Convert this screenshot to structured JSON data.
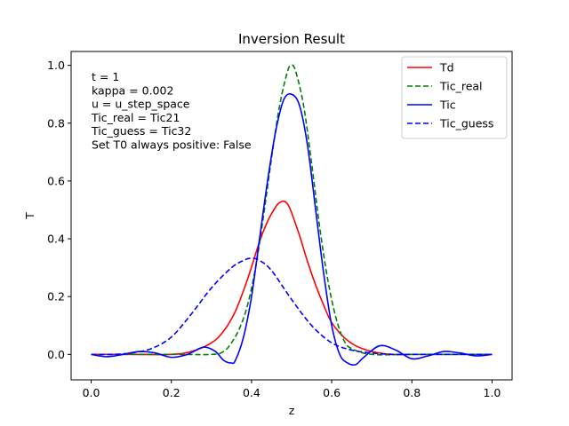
{
  "chart_data": {
    "type": "line",
    "title": "Inversion Result",
    "xlabel": "z",
    "ylabel": "T",
    "xlim": [
      -0.05,
      1.05
    ],
    "ylim": [
      -0.088,
      1.048
    ],
    "xticks": [
      0.0,
      0.2,
      0.4,
      0.6,
      0.8,
      1.0
    ],
    "xtick_labels": [
      "0.0",
      "0.2",
      "0.4",
      "0.6",
      "0.8",
      "1.0"
    ],
    "yticks": [
      0.0,
      0.2,
      0.4,
      0.6,
      0.8,
      1.0
    ],
    "ytick_labels": [
      "0.0",
      "0.2",
      "0.4",
      "0.6",
      "0.8",
      "1.0"
    ],
    "grid": false,
    "legend_position": "top-right",
    "annotations": [
      "t = 1",
      "kappa = 0.002",
      "u = u_step_space",
      "Tic_real = Tic21",
      "Tic_guess = Tic32",
      "Set T0 always positive: False"
    ],
    "series": [
      {
        "name": "Td",
        "color": "#ff0000",
        "dash": "solid",
        "x": [
          0.0,
          0.1,
          0.2,
          0.25,
          0.3,
          0.33,
          0.36,
          0.39,
          0.42,
          0.44,
          0.46,
          0.47,
          0.48,
          0.49,
          0.5,
          0.52,
          0.54,
          0.56,
          0.58,
          0.6,
          0.63,
          0.66,
          0.7,
          0.75,
          0.8,
          0.9,
          1.0
        ],
        "y": [
          0.0,
          0.0,
          0.0,
          0.01,
          0.04,
          0.08,
          0.15,
          0.26,
          0.39,
          0.46,
          0.51,
          0.525,
          0.53,
          0.52,
          0.49,
          0.41,
          0.32,
          0.24,
          0.17,
          0.11,
          0.06,
          0.03,
          0.01,
          0.0,
          0.0,
          0.0,
          0.0
        ]
      },
      {
        "name": "Tic_real",
        "color": "#008000",
        "dash": "dashed",
        "x": [
          0.0,
          0.2,
          0.3,
          0.33,
          0.35,
          0.37,
          0.39,
          0.41,
          0.43,
          0.45,
          0.47,
          0.49,
          0.5,
          0.51,
          0.53,
          0.55,
          0.57,
          0.59,
          0.61,
          0.63,
          0.65,
          0.7,
          0.8,
          1.0
        ],
        "y": [
          0.0,
          0.0,
          0.0,
          0.01,
          0.04,
          0.09,
          0.17,
          0.3,
          0.48,
          0.68,
          0.86,
          0.98,
          1.0,
          0.98,
          0.86,
          0.66,
          0.44,
          0.26,
          0.13,
          0.05,
          0.02,
          0.0,
          0.0,
          0.0
        ]
      },
      {
        "name": "Tic",
        "color": "#0000ff",
        "dash": "solid",
        "x": [
          0.0,
          0.04,
          0.08,
          0.12,
          0.16,
          0.2,
          0.24,
          0.28,
          0.31,
          0.33,
          0.35,
          0.36,
          0.38,
          0.4,
          0.42,
          0.44,
          0.46,
          0.48,
          0.5,
          0.52,
          0.54,
          0.56,
          0.58,
          0.6,
          0.62,
          0.64,
          0.66,
          0.68,
          0.72,
          0.76,
          0.8,
          0.84,
          0.88,
          0.92,
          0.96,
          1.0
        ],
        "y": [
          0.0,
          -0.008,
          0.0,
          0.01,
          0.005,
          -0.01,
          0.0,
          0.025,
          0.01,
          -0.02,
          -0.03,
          -0.02,
          0.06,
          0.2,
          0.4,
          0.6,
          0.77,
          0.88,
          0.9,
          0.86,
          0.72,
          0.5,
          0.28,
          0.1,
          0.0,
          -0.03,
          -0.035,
          -0.01,
          0.03,
          0.015,
          -0.015,
          -0.005,
          0.01,
          0.005,
          -0.005,
          0.0
        ]
      },
      {
        "name": "Tic_guess",
        "color": "#0000ff",
        "dash": "dashed",
        "x": [
          0.0,
          0.05,
          0.1,
          0.15,
          0.2,
          0.25,
          0.3,
          0.35,
          0.38,
          0.4,
          0.42,
          0.45,
          0.5,
          0.55,
          0.6,
          0.65,
          0.7,
          0.75,
          0.8,
          0.9,
          1.0
        ],
        "y": [
          0.0,
          0.0,
          0.005,
          0.02,
          0.06,
          0.14,
          0.23,
          0.3,
          0.325,
          0.333,
          0.325,
          0.29,
          0.19,
          0.1,
          0.04,
          0.015,
          0.005,
          0.0,
          0.0,
          0.0,
          0.0
        ]
      }
    ]
  }
}
